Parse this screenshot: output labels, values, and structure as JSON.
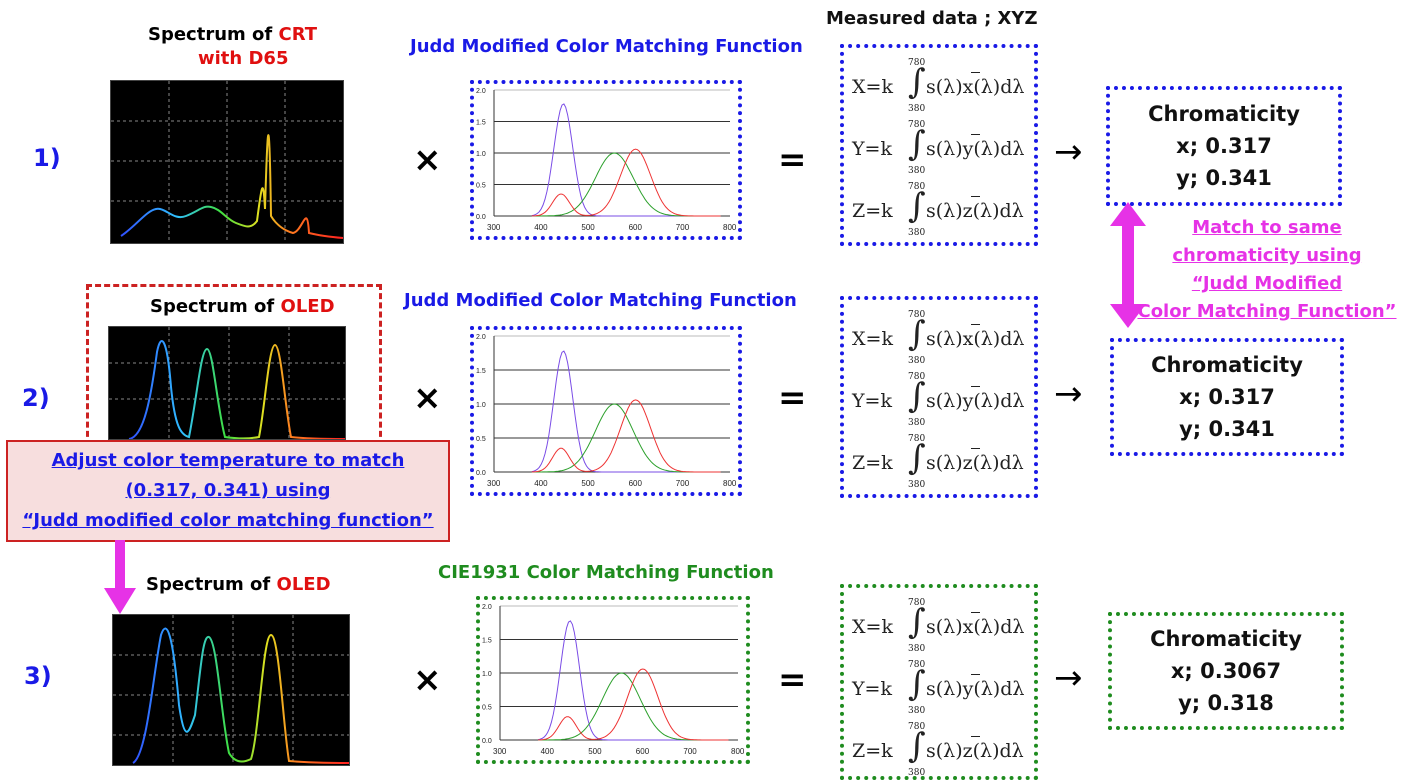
{
  "rows": [
    {
      "number": "1)",
      "spectrum_title_prefix": "Spectrum of ",
      "spectrum_title_highlight": "CRT",
      "spectrum_title_line2": "with D65",
      "cmf_title": "Judd Modified Color Matching Function",
      "operator_times": "×",
      "operator_equals": "=",
      "arrow": "→",
      "chromaticity": {
        "title": "Chromaticity",
        "x": "x; 0.317",
        "y": "y; 0.341"
      }
    },
    {
      "number": "2)",
      "spectrum_title_prefix": "Spectrum of ",
      "spectrum_title_highlight": "OLED",
      "cmf_title": "Judd Modified Color Matching Function",
      "operator_times": "×",
      "operator_equals": "=",
      "arrow": "→",
      "chromaticity": {
        "title": "Chromaticity",
        "x": "x; 0.317",
        "y": "y; 0.341"
      }
    },
    {
      "number": "3)",
      "spectrum_title_prefix": "Spectrum of ",
      "spectrum_title_highlight": "OLED",
      "cmf_title": "CIE1931 Color Matching Function",
      "operator_times": "×",
      "operator_equals": "=",
      "arrow": "→",
      "chromaticity": {
        "title": "Chromaticity",
        "x": "x; 0.3067",
        "y": "y; 0.318"
      }
    }
  ],
  "measured_title": "Measured  data ; XYZ",
  "equations": {
    "x": {
      "lhs": "X=k",
      "body": "s(λ)x(λ)dλ"
    },
    "y": {
      "lhs": "Y=k",
      "body": "s(λ)y(λ)dλ"
    },
    "z": {
      "lhs": "Z=k",
      "body": "s(λ)z(λ)dλ"
    },
    "upper": "780",
    "lower": "380"
  },
  "match_note": [
    "Match to same",
    "chromaticity using",
    "“Judd Modified",
    "Color Matching Function”"
  ],
  "adjust_note": [
    "Adjust color temperature to match",
    "(0.317, 0.341) using",
    "“Judd modified color matching function”"
  ],
  "cmf_axis": {
    "x_ticks": [
      "300",
      "400",
      "500",
      "600",
      "700",
      "800"
    ],
    "y_ticks": [
      "2.0",
      "1.5",
      "1.0",
      "0.5",
      "0.0"
    ]
  },
  "colors": {
    "judd_border": "#1a1ae6",
    "cie_border": "#1f8c1f",
    "oled_highlight": "#e01010",
    "match_arrow": "#e632e6"
  }
}
